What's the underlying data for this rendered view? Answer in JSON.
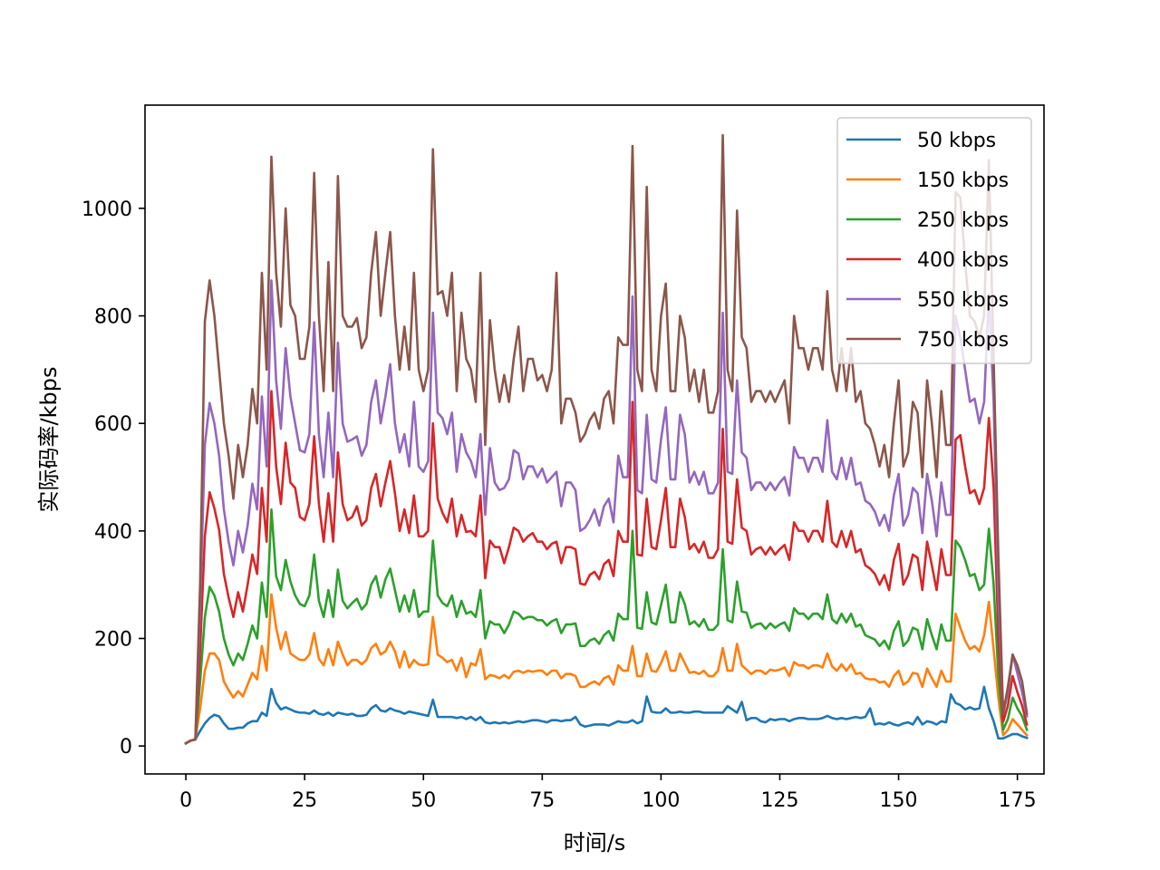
{
  "chart_data": {
    "type": "line",
    "title": "",
    "xlabel": "时间/s",
    "ylabel": "实际码率/kbps",
    "xlim": [
      -8.6,
      180.6
    ],
    "ylim": [
      -52,
      1192
    ],
    "xticks": [
      0,
      25,
      50,
      75,
      100,
      125,
      150,
      175
    ],
    "yticks": [
      0,
      200,
      400,
      600,
      800,
      1000
    ],
    "grid": false,
    "legend_position": "top-right",
    "x": {
      "start": 0,
      "step": 1,
      "count": 173
    },
    "series": [
      {
        "name": "50 kbps",
        "color": "#1f77b4",
        "values": [
          5,
          10,
          12,
          28,
          42,
          52,
          58,
          55,
          42,
          32,
          32,
          34,
          34,
          42,
          46,
          46,
          62,
          56,
          106,
          80,
          68,
          72,
          68,
          64,
          62,
          62,
          60,
          66,
          60,
          58,
          62,
          56,
          62,
          60,
          58,
          60,
          56,
          56,
          58,
          70,
          76,
          66,
          64,
          70,
          66,
          64,
          60,
          64,
          62,
          60,
          58,
          56,
          86,
          54,
          54,
          54,
          54,
          52,
          54,
          50,
          54,
          48,
          54,
          44,
          42,
          44,
          42,
          44,
          42,
          44,
          46,
          44,
          46,
          48,
          48,
          46,
          44,
          48,
          48,
          46,
          48,
          48,
          54,
          40,
          36,
          38,
          40,
          40,
          40,
          38,
          42,
          46,
          44,
          44,
          48,
          42,
          46,
          92,
          64,
          62,
          62,
          70,
          62,
          62,
          64,
          62,
          62,
          64,
          64,
          62,
          62,
          62,
          62,
          62,
          74,
          68,
          62,
          82,
          48,
          52,
          52,
          46,
          44,
          50,
          48,
          50,
          50,
          46,
          50,
          52,
          52,
          50,
          50,
          50,
          52,
          56,
          52,
          50,
          52,
          50,
          52,
          54,
          52,
          54,
          70,
          40,
          42,
          40,
          44,
          40,
          38,
          42,
          44,
          40,
          54,
          40,
          46,
          44,
          40,
          46,
          44,
          96,
          80,
          76,
          68,
          72,
          68,
          70,
          110,
          70,
          46,
          14,
          14,
          18,
          22,
          22,
          18,
          15
        ]
      },
      {
        "name": "150 kbps",
        "color": "#ff7f0e",
        "values": [
          5,
          10,
          12,
          70,
          140,
          172,
          172,
          160,
          120,
          104,
          90,
          102,
          92,
          114,
          136,
          124,
          186,
          140,
          282,
          220,
          180,
          212,
          172,
          166,
          160,
          160,
          170,
          210,
          162,
          150,
          180,
          150,
          194,
          170,
          150,
          160,
          160,
          152,
          160,
          182,
          190,
          170,
          176,
          194,
          176,
          146,
          176,
          146,
          160,
          152,
          150,
          152,
          240,
          170,
          164,
          156,
          160,
          140,
          164,
          128,
          154,
          150,
          180,
          124,
          132,
          130,
          126,
          132,
          126,
          138,
          140,
          136,
          140,
          138,
          140,
          140,
          132,
          140,
          140,
          126,
          134,
          134,
          130,
          110,
          110,
          116,
          120,
          114,
          126,
          130,
          114,
          150,
          140,
          140,
          186,
          130,
          130,
          172,
          140,
          138,
          154,
          176,
          140,
          140,
          172,
          154,
          136,
          138,
          134,
          140,
          130,
          130,
          140,
          182,
          140,
          140,
          190,
          150,
          142,
          134,
          140,
          140,
          134,
          142,
          140,
          142,
          146,
          130,
          156,
          150,
          150,
          144,
          150,
          150,
          146,
          172,
          148,
          140,
          152,
          140,
          152,
          134,
          136,
          126,
          124,
          124,
          118,
          120,
          110,
          130,
          140,
          114,
          120,
          136,
          134,
          110,
          144,
          126,
          110,
          140,
          120,
          120,
          246,
          220,
          196,
          180,
          186,
          176,
          206,
          268,
          180,
          90,
          20,
          30,
          50,
          40,
          30,
          20
        ]
      },
      {
        "name": "250 kbps",
        "color": "#2ca02c",
        "values": [
          5,
          10,
          12,
          120,
          240,
          296,
          280,
          250,
          200,
          170,
          150,
          172,
          160,
          190,
          224,
          200,
          304,
          240,
          440,
          316,
          290,
          346,
          306,
          280,
          264,
          260,
          280,
          356,
          270,
          240,
          290,
          240,
          328,
          270,
          256,
          266,
          274,
          254,
          264,
          300,
          316,
          276,
          310,
          330,
          290,
          250,
          280,
          250,
          290,
          240,
          250,
          250,
          382,
          280,
          266,
          260,
          280,
          240,
          270,
          246,
          250,
          240,
          290,
          200,
          232,
          226,
          226,
          210,
          226,
          250,
          246,
          236,
          240,
          240,
          234,
          234,
          224,
          232,
          236,
          210,
          226,
          226,
          228,
          186,
          186,
          196,
          200,
          190,
          206,
          214,
          196,
          246,
          236,
          236,
          400,
          220,
          218,
          286,
          230,
          226,
          262,
          300,
          230,
          230,
          286,
          264,
          226,
          232,
          222,
          236,
          216,
          216,
          226,
          366,
          234,
          230,
          306,
          250,
          248,
          220,
          226,
          228,
          218,
          228,
          220,
          226,
          230,
          214,
          256,
          246,
          246,
          236,
          246,
          246,
          236,
          282,
          236,
          228,
          246,
          230,
          246,
          222,
          226,
          206,
          202,
          198,
          186,
          196,
          180,
          214,
          232,
          186,
          196,
          220,
          216,
          180,
          236,
          206,
          180,
          226,
          196,
          196,
          382,
          370,
          346,
          316,
          320,
          290,
          300,
          404,
          300,
          130,
          30,
          50,
          90,
          70,
          55,
          30
        ]
      },
      {
        "name": "400 kbps",
        "color": "#d62728",
        "values": [
          5,
          10,
          12,
          180,
          390,
          472,
          442,
          402,
          320,
          276,
          240,
          286,
          250,
          300,
          356,
          320,
          480,
          380,
          660,
          520,
          450,
          564,
          490,
          480,
          426,
          420,
          450,
          576,
          450,
          380,
          470,
          380,
          546,
          450,
          420,
          426,
          446,
          410,
          420,
          480,
          506,
          446,
          490,
          530,
          470,
          400,
          440,
          396,
          466,
          390,
          390,
          400,
          600,
          460,
          434,
          416,
          460,
          390,
          430,
          398,
          400,
          390,
          466,
          312,
          382,
          370,
          370,
          340,
          370,
          406,
          400,
          380,
          390,
          396,
          380,
          380,
          366,
          376,
          380,
          340,
          370,
          370,
          366,
          302,
          300,
          318,
          324,
          310,
          338,
          346,
          316,
          400,
          380,
          380,
          640,
          356,
          354,
          460,
          370,
          366,
          420,
          480,
          370,
          370,
          460,
          426,
          366,
          376,
          360,
          380,
          350,
          350,
          366,
          590,
          380,
          376,
          496,
          406,
          400,
          356,
          366,
          370,
          356,
          370,
          356,
          366,
          374,
          346,
          416,
          400,
          400,
          380,
          400,
          400,
          380,
          456,
          380,
          370,
          400,
          370,
          400,
          360,
          366,
          336,
          330,
          320,
          300,
          318,
          290,
          346,
          376,
          300,
          318,
          356,
          350,
          290,
          380,
          336,
          290,
          366,
          318,
          318,
          570,
          578,
          520,
          470,
          476,
          450,
          480,
          610,
          480,
          200,
          45,
          75,
          130,
          100,
          75,
          40
        ]
      },
      {
        "name": "550 kbps",
        "color": "#9467bd",
        "values": [
          5,
          10,
          12,
          260,
          560,
          638,
          600,
          540,
          440,
          380,
          336,
          400,
          360,
          410,
          488,
          440,
          650,
          520,
          866,
          680,
          590,
          740,
          650,
          600,
          550,
          546,
          580,
          788,
          580,
          500,
          620,
          500,
          750,
          600,
          566,
          570,
          576,
          540,
          560,
          640,
          680,
          600,
          650,
          710,
          600,
          546,
          580,
          520,
          640,
          520,
          510,
          530,
          806,
          620,
          610,
          580,
          620,
          510,
          580,
          546,
          530,
          500,
          580,
          430,
          554,
          490,
          476,
          480,
          496,
          550,
          544,
          496,
          520,
          520,
          500,
          516,
          490,
          500,
          510,
          446,
          490,
          490,
          476,
          400,
          406,
          420,
          440,
          410,
          446,
          460,
          416,
          540,
          500,
          500,
          836,
          476,
          470,
          616,
          496,
          490,
          570,
          630,
          496,
          496,
          616,
          580,
          490,
          510,
          486,
          510,
          470,
          470,
          490,
          806,
          510,
          506,
          680,
          546,
          536,
          476,
          490,
          490,
          476,
          490,
          476,
          490,
          500,
          466,
          556,
          536,
          536,
          510,
          536,
          536,
          510,
          606,
          510,
          496,
          536,
          496,
          536,
          486,
          490,
          456,
          450,
          436,
          410,
          430,
          400,
          466,
          506,
          410,
          430,
          480,
          470,
          396,
          506,
          456,
          390,
          490,
          430,
          430,
          800,
          760,
          700,
          640,
          646,
          600,
          640,
          840,
          640,
          280,
          60,
          100,
          170,
          135,
          100,
          55
        ]
      },
      {
        "name": "750 kbps",
        "color": "#8c564b",
        "values": [
          5,
          10,
          12,
          300,
          790,
          866,
          800,
          700,
          600,
          540,
          460,
          560,
          500,
          560,
          664,
          600,
          880,
          700,
          1096,
          880,
          780,
          1000,
          820,
          800,
          720,
          720,
          780,
          1066,
          800,
          660,
          900,
          660,
          1060,
          800,
          780,
          780,
          796,
          740,
          760,
          880,
          956,
          800,
          880,
          956,
          800,
          700,
          780,
          700,
          880,
          700,
          660,
          700,
          1110,
          840,
          846,
          800,
          880,
          660,
          806,
          720,
          700,
          640,
          880,
          560,
          792,
          700,
          640,
          690,
          640,
          720,
          780,
          660,
          720,
          720,
          680,
          690,
          660,
          700,
          880,
          600,
          646,
          646,
          620,
          566,
          580,
          606,
          620,
          590,
          646,
          660,
          600,
          760,
          746,
          746,
          1116,
          700,
          660,
          1040,
          700,
          660,
          800,
          860,
          660,
          660,
          800,
          760,
          660,
          700,
          640,
          700,
          620,
          620,
          660,
          1136,
          700,
          660,
          996,
          760,
          740,
          640,
          660,
          660,
          640,
          660,
          640,
          660,
          680,
          600,
          800,
          740,
          740,
          700,
          740,
          740,
          700,
          846,
          700,
          660,
          740,
          660,
          740,
          640,
          660,
          600,
          590,
          560,
          520,
          560,
          500,
          600,
          680,
          520,
          546,
          640,
          620,
          500,
          680,
          600,
          500,
          660,
          560,
          560,
          1030,
          1020,
          900,
          800,
          790,
          760,
          800,
          1090,
          720,
          350,
          60,
          110,
          170,
          150,
          120,
          60
        ]
      }
    ]
  }
}
